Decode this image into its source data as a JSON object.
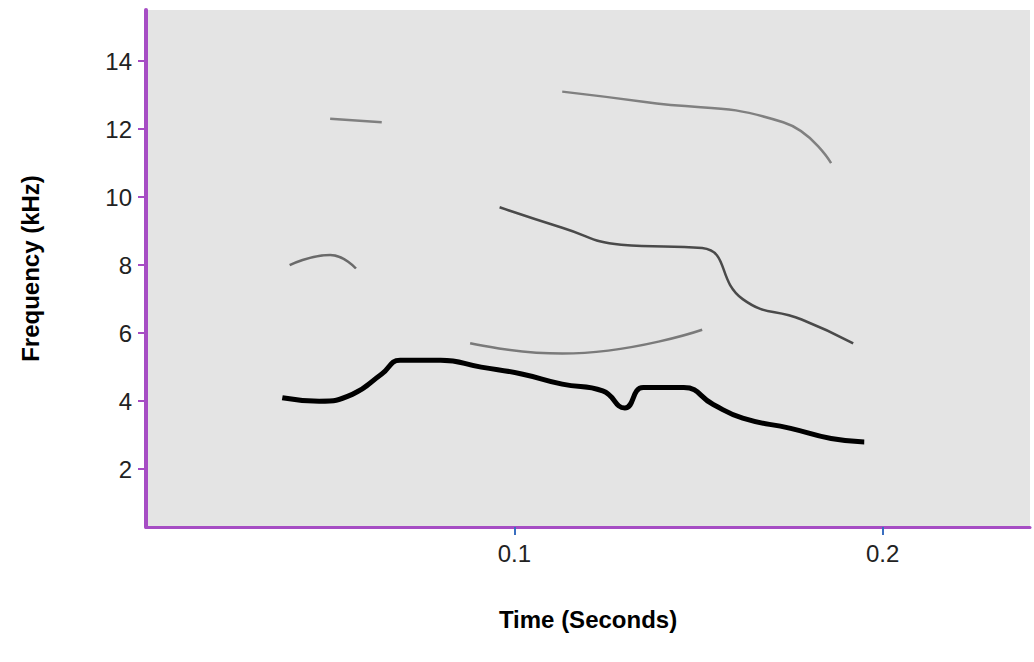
{
  "chart_data": {
    "type": "line",
    "x_label": "Time (Seconds)",
    "y_label": "Frequency (kHz)",
    "xlim": [
      0,
      0.24
    ],
    "xticks": [
      0.1,
      0.2
    ],
    "ylim": [
      0.3,
      15.5
    ],
    "yticks": [
      2,
      4,
      6,
      8,
      10,
      12,
      14
    ],
    "grid": false,
    "marker": "none",
    "line_style": "solid",
    "series": [
      {
        "color": "#000000",
        "x": [
          0.037,
          0.047,
          0.056,
          0.064,
          0.069,
          0.08,
          0.091,
          0.102,
          0.113,
          0.124,
          0.13,
          0.135,
          0.146,
          0.154,
          0.162,
          0.175,
          0.186,
          0.195
        ],
        "values": [
          4.1,
          4.0,
          4.2,
          4.8,
          5.2,
          5.2,
          5.0,
          4.8,
          4.5,
          4.3,
          3.8,
          4.4,
          4.4,
          3.9,
          3.5,
          3.2,
          2.9,
          2.8
        ]
      },
      {
        "color": "#4a4a4a",
        "x": [
          0.096,
          0.113,
          0.129,
          0.151,
          0.162,
          0.178,
          0.192
        ],
        "values": [
          9.7,
          9.1,
          8.6,
          8.5,
          7.0,
          6.4,
          5.7
        ]
      },
      {
        "color": "#6a6a6a",
        "x": [
          0.039,
          0.05,
          0.057
        ],
        "values": [
          8.0,
          8.3,
          7.9
        ]
      },
      {
        "color": "#7a7a7a",
        "x": [
          0.088,
          0.113,
          0.151
        ],
        "values": [
          5.7,
          5.4,
          6.1
        ]
      },
      {
        "color": "#808080",
        "x": [
          0.05,
          0.064
        ],
        "values": [
          12.3,
          12.2
        ]
      },
      {
        "color": "#808080",
        "x": [
          0.113,
          0.135,
          0.173,
          0.186
        ],
        "values": [
          13.1,
          12.8,
          12.2,
          11.0
        ]
      }
    ]
  }
}
